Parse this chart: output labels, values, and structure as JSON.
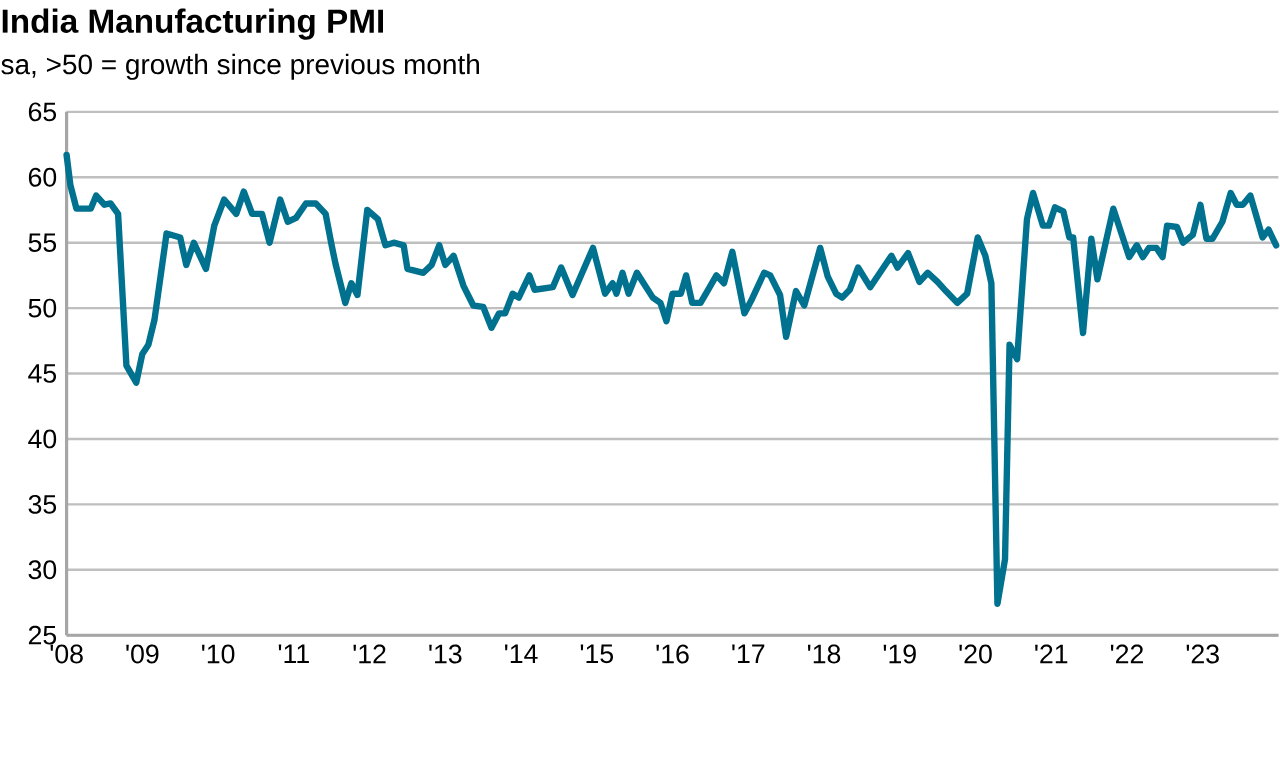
{
  "chart_data": {
    "type": "line",
    "title": "India Manufacturing PMI",
    "subtitle": "sa, >50 = growth since previous month",
    "xlim": [
      2008,
      2024
    ],
    "xticks": [
      {
        "value": 2008,
        "label": "'08"
      },
      {
        "value": 2009,
        "label": "'09"
      },
      {
        "value": 2010,
        "label": "'10"
      },
      {
        "value": 2011,
        "label": "'11"
      },
      {
        "value": 2012,
        "label": "'12"
      },
      {
        "value": 2013,
        "label": "'13"
      },
      {
        "value": 2014,
        "label": "'14"
      },
      {
        "value": 2015,
        "label": "'15"
      },
      {
        "value": 2016,
        "label": "'16"
      },
      {
        "value": 2017,
        "label": "'17"
      },
      {
        "value": 2018,
        "label": "'18"
      },
      {
        "value": 2019,
        "label": "'19"
      },
      {
        "value": 2020,
        "label": "'20"
      },
      {
        "value": 2021,
        "label": "'21"
      },
      {
        "value": 2022,
        "label": "'22"
      },
      {
        "value": 2023,
        "label": "'23"
      }
    ],
    "ylim": [
      25,
      65
    ],
    "yticks": [
      25,
      30,
      35,
      40,
      45,
      50,
      55,
      60,
      65
    ],
    "grid": "y",
    "marker": "none",
    "line_style": "solid",
    "series": [
      {
        "color": "#00728f",
        "x": [
          2008.0,
          2008.05,
          2008.13,
          2008.32,
          2008.39,
          2008.5,
          2008.58,
          2008.68,
          2008.79,
          2008.92,
          2009.0,
          2009.08,
          2009.16,
          2009.32,
          2009.5,
          2009.58,
          2009.68,
          2009.84,
          2009.95,
          2010.08,
          2010.24,
          2010.34,
          2010.45,
          2010.58,
          2010.68,
          2010.82,
          2010.92,
          2011.03,
          2011.16,
          2011.29,
          2011.42,
          2011.5,
          2011.55,
          2011.68,
          2011.76,
          2011.84,
          2011.97,
          2012.11,
          2012.21,
          2012.32,
          2012.45,
          2012.5,
          2012.71,
          2012.82,
          2012.92,
          2013.0,
          2013.11,
          2013.24,
          2013.37,
          2013.5,
          2013.61,
          2013.71,
          2013.79,
          2013.89,
          2013.97,
          2014.11,
          2014.18,
          2014.42,
          2014.53,
          2014.68,
          2014.95,
          2015.11,
          2015.21,
          2015.26,
          2015.34,
          2015.42,
          2015.53,
          2015.74,
          2015.84,
          2015.92,
          2016.0,
          2016.11,
          2016.18,
          2016.26,
          2016.37,
          2016.47,
          2016.58,
          2016.68,
          2016.79,
          2016.95,
          2017.05,
          2017.21,
          2017.29,
          2017.42,
          2017.5,
          2017.63,
          2017.74,
          2017.95,
          2018.05,
          2018.16,
          2018.24,
          2018.34,
          2018.45,
          2018.61,
          2018.89,
          2018.97,
          2019.11,
          2019.26,
          2019.37,
          2019.5,
          2019.61,
          2019.76,
          2019.89,
          2020.03,
          2020.13,
          2020.21,
          2020.29,
          2020.39,
          2020.45,
          2020.55,
          2020.68,
          2020.76,
          2020.89,
          2020.97,
          2021.05,
          2021.16,
          2021.24,
          2021.29,
          2021.42,
          2021.53,
          2021.61,
          2021.82,
          2022.03,
          2022.13,
          2022.21,
          2022.29,
          2022.39,
          2022.47,
          2022.53,
          2022.66,
          2022.74,
          2022.87,
          2022.97,
          2023.05,
          2023.13,
          2023.26,
          2023.37,
          2023.45,
          2023.53,
          2023.63,
          2023.79,
          2023.87,
          2023.97
        ],
        "values": [
          61.7,
          59.4,
          57.6,
          57.6,
          58.6,
          57.9,
          58.0,
          57.2,
          45.6,
          44.3,
          46.5,
          47.2,
          49.1,
          55.7,
          55.4,
          53.3,
          55.0,
          53.0,
          56.3,
          58.3,
          57.2,
          58.9,
          57.2,
          57.2,
          55.0,
          58.3,
          56.6,
          56.9,
          58.0,
          58.0,
          57.2,
          54.8,
          53.4,
          50.4,
          51.9,
          51.0,
          57.5,
          56.8,
          54.8,
          55.0,
          54.8,
          53.0,
          52.7,
          53.3,
          54.8,
          53.3,
          54.0,
          51.7,
          50.2,
          50.1,
          48.5,
          49.6,
          49.6,
          51.1,
          50.8,
          52.5,
          51.4,
          51.6,
          53.1,
          51.0,
          54.6,
          51.1,
          51.9,
          51.1,
          52.7,
          51.1,
          52.7,
          50.8,
          50.4,
          49.0,
          51.1,
          51.1,
          52.5,
          50.4,
          50.4,
          51.4,
          52.5,
          51.9,
          54.3,
          49.6,
          50.7,
          52.7,
          52.5,
          51.0,
          47.8,
          51.3,
          50.2,
          54.6,
          52.4,
          51.1,
          50.8,
          51.4,
          53.1,
          51.6,
          54.0,
          53.1,
          54.2,
          52.0,
          52.7,
          52.0,
          51.3,
          50.4,
          51.1,
          55.4,
          54.0,
          51.9,
          27.4,
          30.8,
          47.2,
          46.1,
          56.8,
          58.8,
          56.3,
          56.3,
          57.7,
          57.4,
          55.4,
          55.4,
          48.1,
          55.3,
          52.2,
          57.6,
          53.9,
          54.8,
          53.9,
          54.6,
          54.6,
          53.9,
          56.3,
          56.2,
          55.0,
          55.6,
          57.9,
          55.3,
          55.3,
          56.6,
          58.8,
          57.9,
          57.9,
          58.6,
          55.4,
          56.0,
          54.8
        ]
      }
    ]
  }
}
